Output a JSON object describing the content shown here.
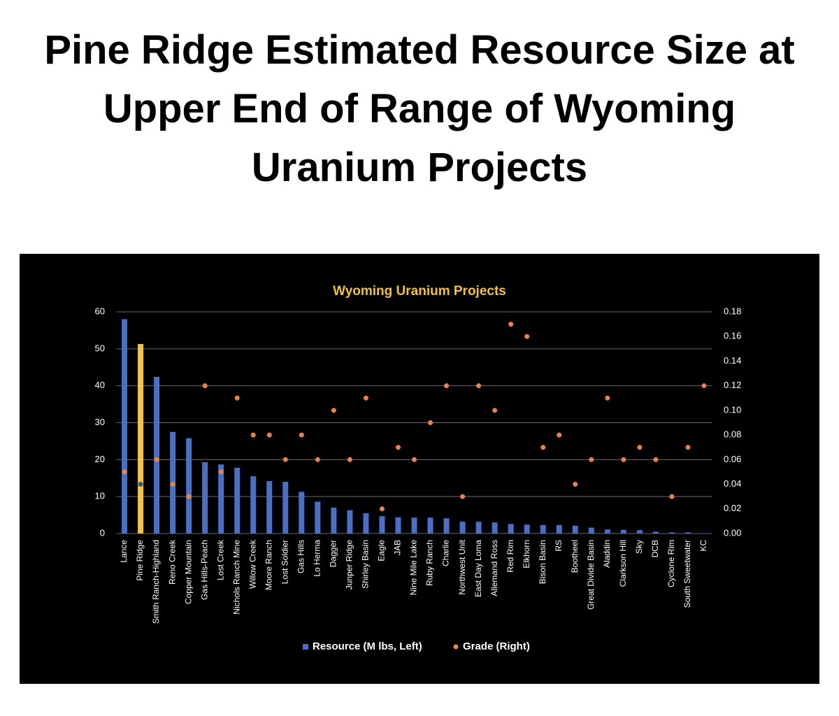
{
  "header": {
    "title": "Pine Ridge Estimated Resource Size at Upper End of Range of Wyoming Uranium Projects"
  },
  "chart_data": {
    "type": "bar",
    "title": "Wyoming Uranium Projects",
    "categories": [
      "Lance",
      "Pine Ridge",
      "Smith Ranch-Highland",
      "Reno Creek",
      "Copper Mountain",
      "Gas Hills-Peach",
      "Lost Creek",
      "Nichols Ranch Mine",
      "Willow Creek",
      "Moore Ranch",
      "Lost Soldier",
      "Gas Hills",
      "Lo Herma",
      "Dagger",
      "Junper Ridge",
      "Shirley Basin",
      "Eagle",
      "JAB",
      "Nine Mile Lake",
      "Ruby Ranch",
      "Charlie",
      "Northwest Unit",
      "East Day Loma",
      "Allemand Ross",
      "Red Rim",
      "Elkhorn",
      "Bison Basin",
      "RS",
      "Bootheel",
      "Great Divide Basin",
      "Aladdin",
      "Clarkson Hill",
      "Sky",
      "DCB",
      "Cyclone Rim",
      "South Sweetwater",
      "KC"
    ],
    "series": [
      {
        "name": "Resource (M lbs, Left)",
        "type": "bar",
        "color": "#4a6fc4",
        "colors": [
          "#4a6fc4",
          "#f5c342",
          "#4a6fc4",
          "#4a6fc4",
          "#4a6fc4",
          "#4a6fc4",
          "#4a6fc4",
          "#4a6fc4",
          "#4a6fc4",
          "#4a6fc4",
          "#4a6fc4",
          "#4a6fc4",
          "#4a6fc4",
          "#4a6fc4",
          "#4a6fc4",
          "#4a6fc4",
          "#4a6fc4",
          "#4a6fc4",
          "#4a6fc4",
          "#4a6fc4",
          "#4a6fc4",
          "#4a6fc4",
          "#4a6fc4",
          "#4a6fc4",
          "#4a6fc4",
          "#4a6fc4",
          "#4a6fc4",
          "#4a6fc4",
          "#4a6fc4",
          "#4a6fc4",
          "#4a6fc4",
          "#4a6fc4",
          "#4a6fc4",
          "#4a6fc4",
          "#4a6fc4",
          "#4a6fc4",
          "#4a6fc4"
        ],
        "values": [
          58,
          51.3,
          42.4,
          27.5,
          25.8,
          19.3,
          18.7,
          17.8,
          15.5,
          14.2,
          14,
          11.3,
          8.6,
          7,
          6.3,
          5.5,
          4.7,
          4.4,
          4.3,
          4.3,
          4.1,
          3.2,
          3.2,
          3,
          2.6,
          2.4,
          2.3,
          2.3,
          2.1,
          1.6,
          1.1,
          1,
          0.9,
          0.5,
          0.3,
          0.3,
          0.1
        ]
      },
      {
        "name": "Grade (Right)",
        "type": "scatter",
        "axis": "y2",
        "color": "#e8834a",
        "colors": [
          "#e8834a",
          "#3d5a6b",
          "#e8834a",
          "#e8834a",
          "#e8834a",
          "#e8834a",
          "#e8834a",
          "#e8834a",
          "#e8834a",
          "#e8834a",
          "#e8834a",
          "#e8834a",
          "#e8834a",
          "#e8834a",
          "#e8834a",
          "#e8834a",
          "#e8834a",
          "#e8834a",
          "#e8834a",
          "#e8834a",
          "#e8834a",
          "#e8834a",
          "#e8834a",
          "#e8834a",
          "#e8834a",
          "#e8834a",
          "#e8834a",
          "#e8834a",
          "#e8834a",
          "#e8834a",
          "#e8834a",
          "#e8834a",
          "#e8834a",
          "#e8834a",
          "#e8834a",
          "#e8834a",
          "#e8834a"
        ],
        "values": [
          0.05,
          0.04,
          0.06,
          0.04,
          0.03,
          0.12,
          0.05,
          0.11,
          0.08,
          0.08,
          0.06,
          0.08,
          0.06,
          0.1,
          0.06,
          0.11,
          0.02,
          0.07,
          0.06,
          0.09,
          0.12,
          0.03,
          0.12,
          0.1,
          0.17,
          0.16,
          0.07,
          0.08,
          0.04,
          0.06,
          0.11,
          0.06,
          0.07,
          0.06,
          0.03,
          0.07,
          0.12
        ]
      }
    ],
    "ylim": [
      0,
      60
    ],
    "yticks": [
      0,
      10,
      20,
      30,
      40,
      50,
      60
    ],
    "y2lim": [
      0,
      0.18
    ],
    "y2ticks": [
      {
        "value": 0,
        "label": "0.00"
      },
      {
        "value": 0.02,
        "label": "0.02"
      },
      {
        "value": 0.04,
        "label": "0.04"
      },
      {
        "value": 0.06,
        "label": "0.06"
      },
      {
        "value": 0.08,
        "label": "0.08"
      },
      {
        "value": 0.1,
        "label": "0.10"
      },
      {
        "value": 0.12,
        "label": "0.12"
      },
      {
        "value": 0.14,
        "label": "0.14"
      },
      {
        "value": 0.16,
        "label": "0.16"
      },
      {
        "value": 0.18,
        "label": "0.18"
      }
    ],
    "grid": true,
    "legend": "bottom",
    "title_color": "#f0c040",
    "background": "#000000"
  }
}
